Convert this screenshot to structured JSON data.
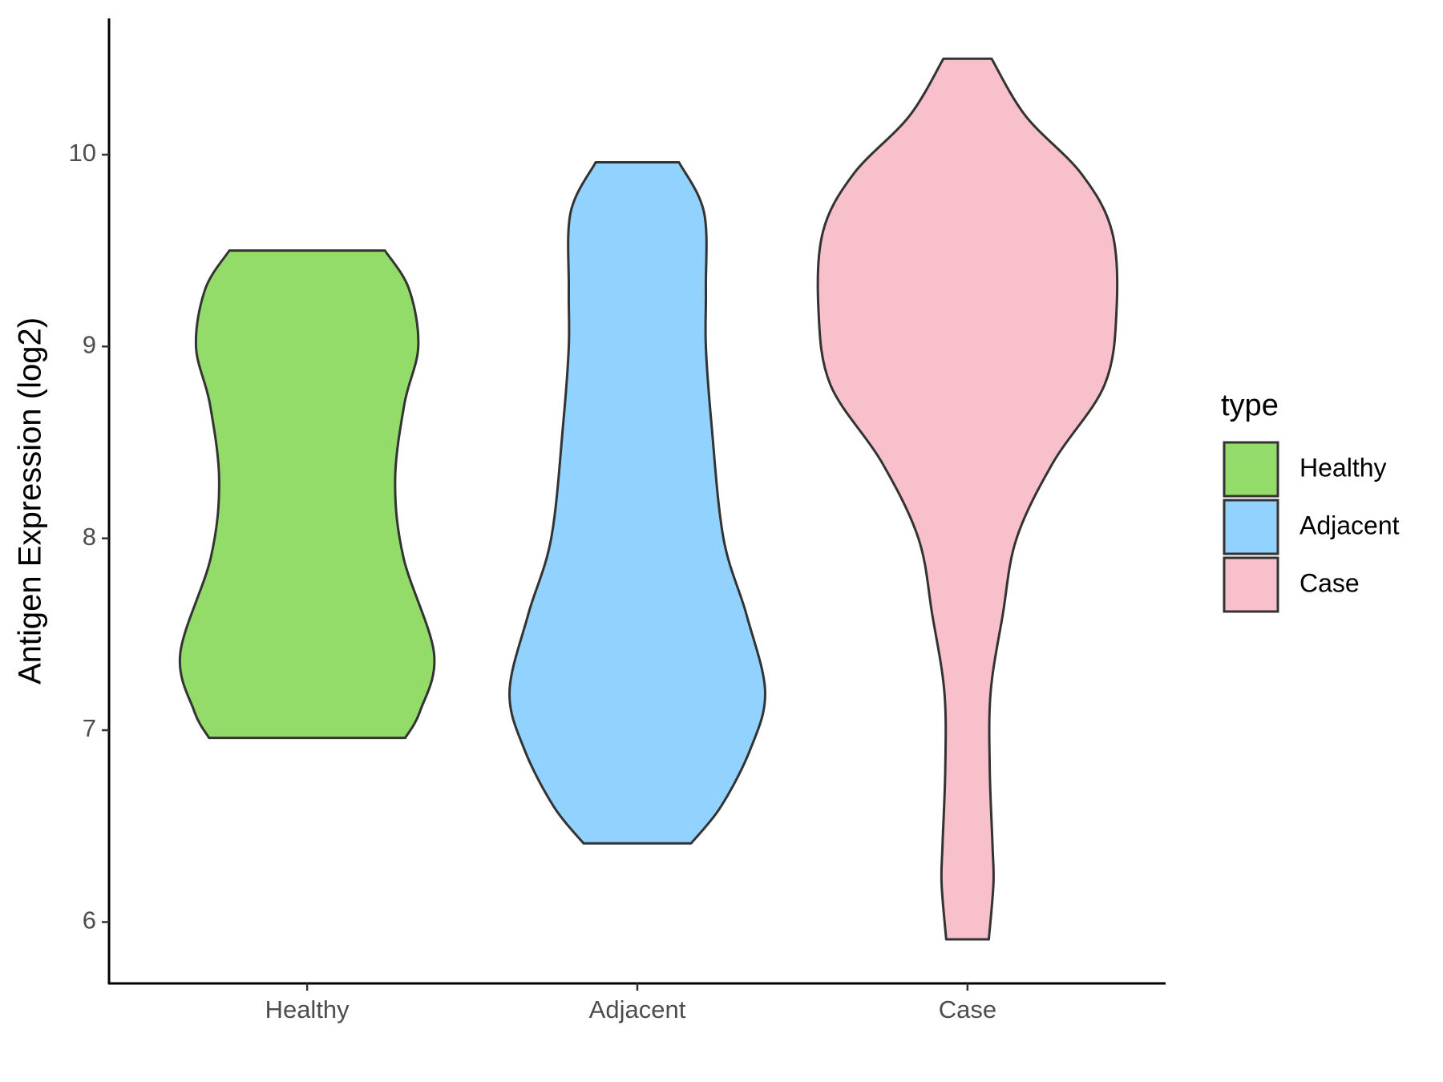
{
  "chart_data": {
    "type": "violin",
    "y_label": "Antigen Expression (log2)",
    "legend_title": "type",
    "categories": [
      "Healthy",
      "Adjacent",
      "Case"
    ],
    "ylim": [
      5.68,
      10.71
    ],
    "yticks": [
      6,
      7,
      8,
      9,
      10
    ],
    "series": [
      {
        "name": "Healthy",
        "color": "#94dc6a",
        "y": [
          6.96,
          7.1,
          7.4,
          7.9,
          8.3,
          8.7,
          9.0,
          9.3,
          9.5
        ],
        "density": [
          1.06,
          1.22,
          1.37,
          1.04,
          0.95,
          1.05,
          1.2,
          1.1,
          0.84
        ]
      },
      {
        "name": "Adjacent",
        "color": "#92d2fe",
        "y": [
          6.41,
          6.6,
          6.9,
          7.2,
          7.6,
          8.0,
          8.6,
          9.0,
          9.3,
          9.7,
          9.96
        ],
        "density": [
          0.58,
          0.9,
          1.22,
          1.38,
          1.18,
          0.93,
          0.8,
          0.74,
          0.74,
          0.72,
          0.45
        ]
      },
      {
        "name": "Case",
        "color": "#f7c0cb",
        "y": [
          5.91,
          6.2,
          6.4,
          6.8,
          7.2,
          7.6,
          8.0,
          8.4,
          8.8,
          9.2,
          9.6,
          9.9,
          10.2,
          10.5
        ],
        "density": [
          0.23,
          0.28,
          0.27,
          0.24,
          0.25,
          0.38,
          0.53,
          0.93,
          1.48,
          1.61,
          1.56,
          1.23,
          0.63,
          0.26
        ]
      }
    ]
  }
}
